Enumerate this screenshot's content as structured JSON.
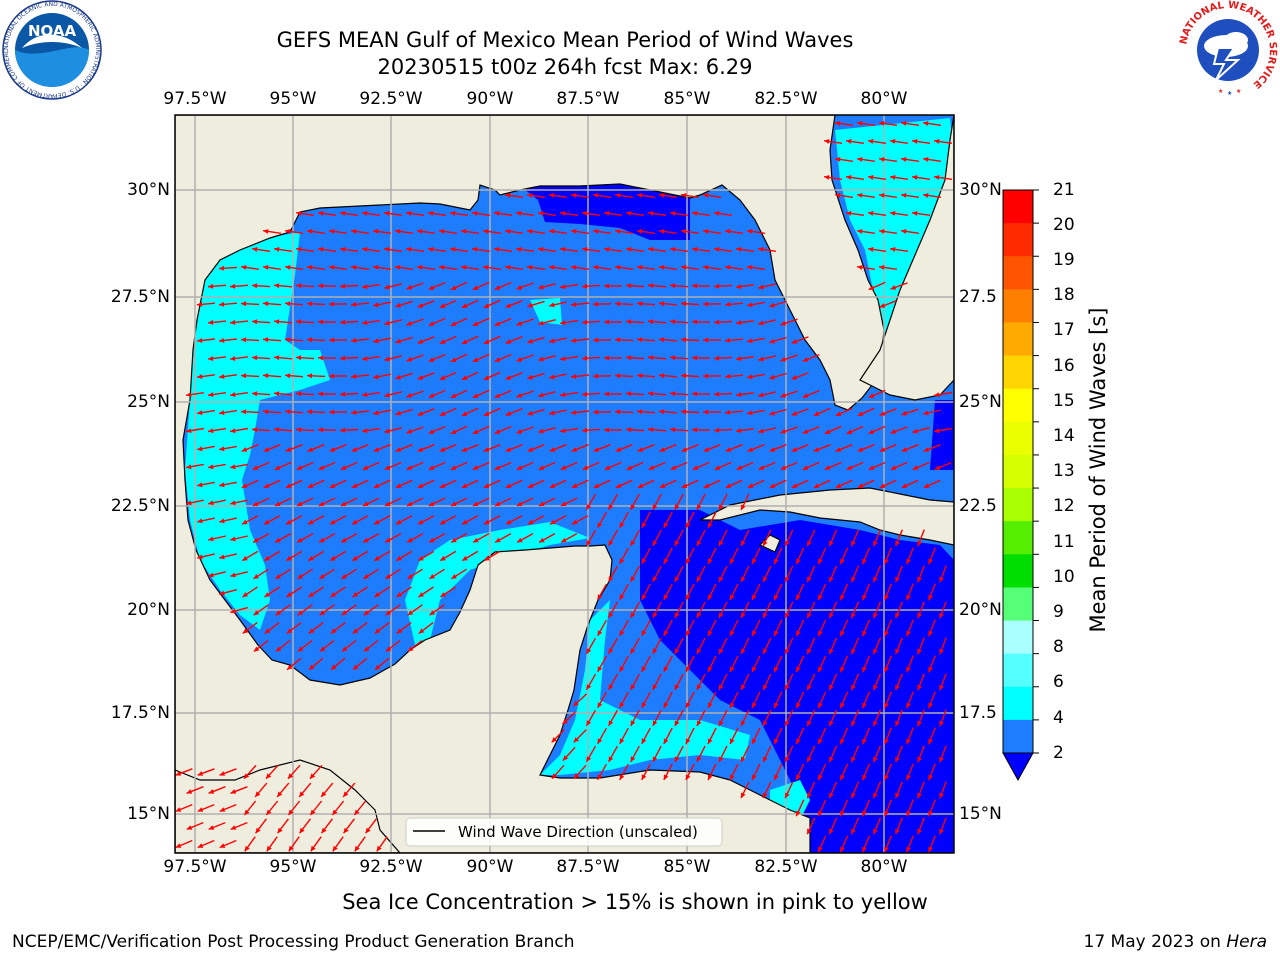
{
  "title": {
    "line1": "GEFS MEAN Gulf of Mexico Mean Period of Wind Waves",
    "line2": "20230515 t00z 264h fcst   Max: 6.29"
  },
  "map": {
    "lon_labels": [
      "97.5°W",
      "95°W",
      "92.5°W",
      "90°W",
      "87.5°W",
      "85°W",
      "82.5°W",
      "80°W"
    ],
    "lat_labels_left": [
      "30°N",
      "27.5°N",
      "25°N",
      "22.5°N",
      "20°N",
      "17.5°N",
      "15°N"
    ],
    "lat_labels_right": [
      "30°N",
      "27.5",
      "25°N",
      "22.5",
      "20°N",
      "17.5",
      "15°N"
    ],
    "legend_label": "Wind Wave Direction (unscaled)",
    "ocean_base_color": "#1e7cff",
    "land_color": "#efedde",
    "arrow_color": "#ff0000"
  },
  "colorbar": {
    "label": "Mean Period of Wind Waves [s]",
    "ticks": [
      "21",
      "20",
      "19",
      "18",
      "17",
      "16",
      "15",
      "14",
      "13",
      "12",
      "11",
      "10",
      "9",
      "8",
      "6",
      "4",
      "2"
    ],
    "colors": [
      "#ff0000",
      "#ff2a00",
      "#ff5500",
      "#ff7f00",
      "#ffaa00",
      "#ffd500",
      "#ffff00",
      "#eaff00",
      "#d5ff00",
      "#aaff00",
      "#55ee00",
      "#00dd00",
      "#55ff77",
      "#aaffff",
      "#55ffff",
      "#00ffff",
      "#1e7cff"
    ],
    "under_color": "#0000ff"
  },
  "subtitle": "Sea Ice Concentration > 15% is shown in pink to yellow",
  "footer": {
    "left": "NCEP/EMC/Verification Post Processing Product Generation Branch",
    "date": "17 May 2023 on ",
    "host": "Hera"
  },
  "logos": {
    "noaa_text": "NOAA",
    "noaa_ring_text": "NATIONAL OCEANIC AND ATMOSPHERIC ADMINISTRATION · U.S. DEPARTMENT OF COMMERCE",
    "nws_ring_text": "NATIONAL WEATHER SERVICE"
  }
}
